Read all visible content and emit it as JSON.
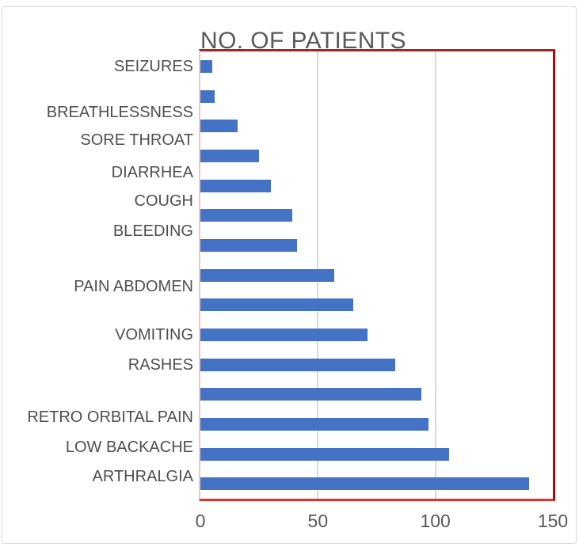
{
  "chart_data": {
    "type": "bar",
    "orientation": "horizontal",
    "title": "NO. OF PATIENTS",
    "categories": [
      "SEIZURES",
      "",
      "BREATHLESSNESS",
      "SORE THROAT",
      "DIARRHEA",
      "COUGH",
      "BLEEDING",
      "PAIN ABDOMEN",
      "",
      "VOMITING",
      "RASHES",
      "",
      "RETRO ORBITAL PAIN",
      "LOW BACKACHE",
      "ARTHRALGIA"
    ],
    "values": [
      5,
      6,
      16,
      25,
      30,
      39,
      41,
      57,
      65,
      71,
      83,
      94,
      97,
      106,
      140
    ],
    "x_ticks": [
      "0",
      "50",
      "100",
      "150"
    ],
    "x_tick_values": [
      0,
      50,
      100,
      150
    ],
    "xlim": [
      0,
      150
    ],
    "gridline_values": [
      50,
      100
    ],
    "xlabel": "",
    "ylabel": "",
    "legend": "none",
    "grid": "vertical-major",
    "colors": {
      "bar": "#4472c4",
      "title_text": "#595959",
      "tick_text": "#595959",
      "category_text": "#4f4f4f",
      "gridline": "#d9d9d9",
      "frame_border": "#d9d9d9",
      "plot_border_top": "#9c291f",
      "plot_border_right": "#c00000",
      "plot_border_bottom": "#e03126",
      "axis_line_left": "#f2c5c2"
    }
  }
}
